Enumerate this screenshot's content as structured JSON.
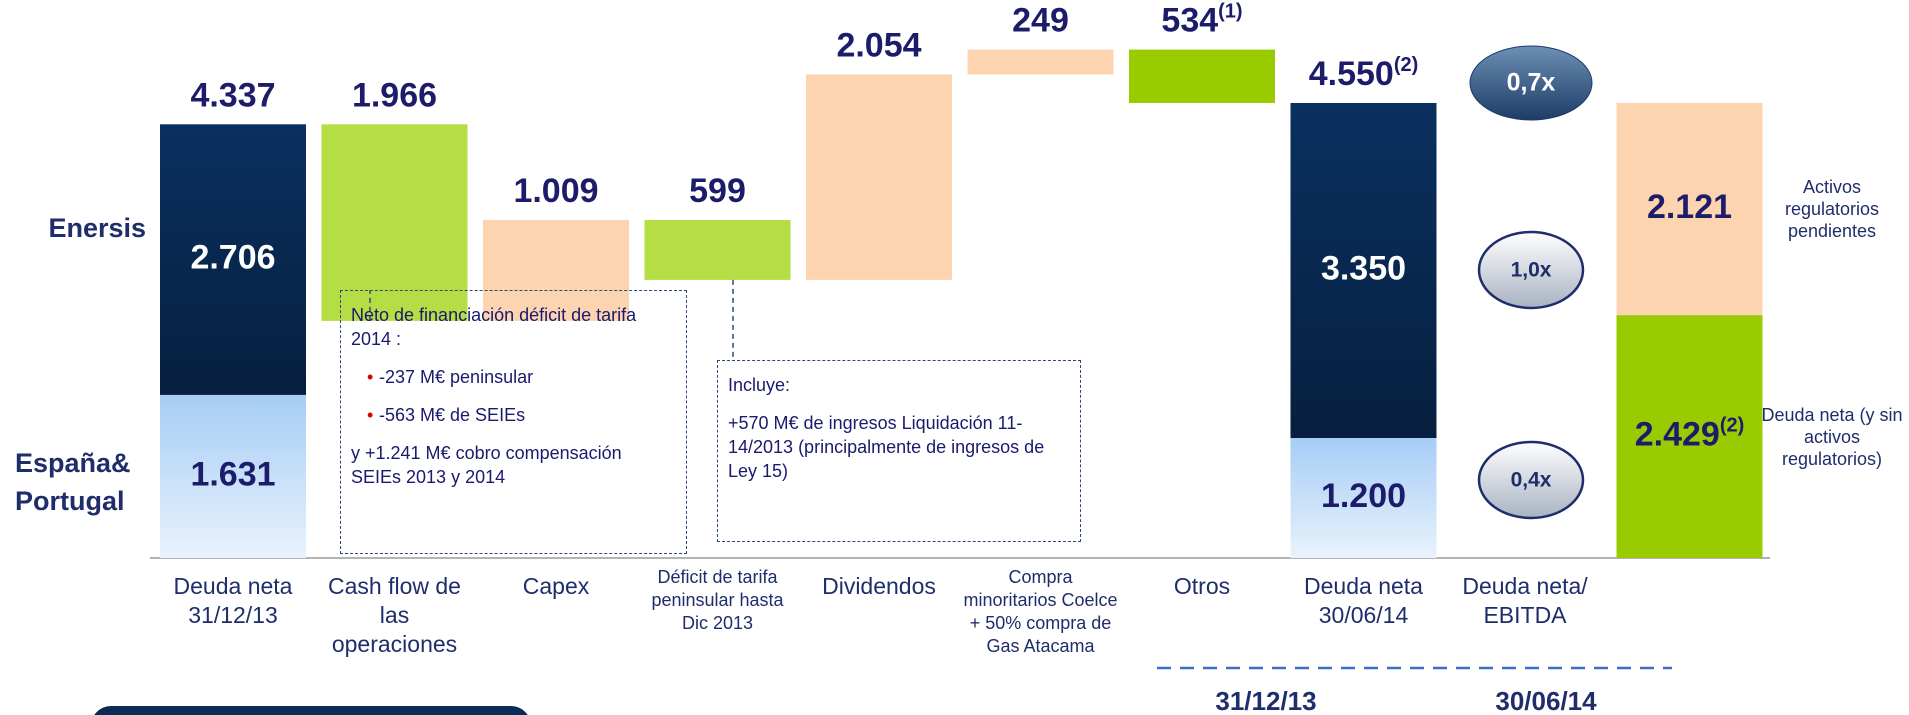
{
  "chart_data": {
    "type": "waterfall",
    "row_labels": [
      "Enersis",
      "España& Portugal"
    ],
    "categories": [
      "Deuda neta 31/12/13",
      "Cash flow de las operaciones",
      "Capex",
      "Déficit de tarifa peninsular hasta Dic 2013",
      "Dividendos",
      "Compra minoritarios Coelce + 50% compra de Gas Atacama",
      "Otros",
      "Deuda neta 30/06/14",
      "Deuda neta/ EBITDA"
    ],
    "start": {
      "total": 4337,
      "total_label": "4.337",
      "segments": [
        {
          "value": 1631,
          "label": "1.631",
          "color": "#a6cdf5"
        },
        {
          "value": 2706,
          "label": "2.706",
          "color": "#0a3060"
        }
      ]
    },
    "steps": [
      {
        "value": 1966,
        "label": "1.966",
        "decrease": true,
        "color": "#b5dd44"
      },
      {
        "value": 1009,
        "label": "1.009",
        "decrease": false,
        "color": "#fcd5b0"
      },
      {
        "value": 599,
        "label": "599",
        "decrease": true,
        "color": "#b5dd44"
      },
      {
        "value": 2054,
        "label": "2.054",
        "decrease": false,
        "color": "#fcd5b0"
      },
      {
        "value": 249,
        "label": "249",
        "decrease": false,
        "color": "#fcd5b0"
      },
      {
        "value": 534,
        "label": "534",
        "note": "(1)",
        "decrease": true,
        "color": "#99cc00"
      }
    ],
    "end": {
      "total": 4550,
      "total_label": "4.550",
      "note": "(2)",
      "segments": [
        {
          "value": 1200,
          "label": "1.200",
          "color": "#a6cdf5"
        },
        {
          "value": 3350,
          "label": "3.350",
          "color": "#0a3060"
        }
      ]
    },
    "split": {
      "segments": [
        {
          "value": 2429,
          "label": "2.429",
          "note": "(2)",
          "color": "#99cc00",
          "side_label": "Deuda neta (y sin activos regulatorios)"
        },
        {
          "value": 2121,
          "label": "2.121",
          "color": "#fcd5b0",
          "side_label": "Activos regulatorios pendientes"
        }
      ]
    },
    "ratios": [
      "0,7x",
      "1,0x",
      "0,4x"
    ],
    "period_labels": [
      "31/12/13",
      "30/06/14"
    ],
    "annotations": [
      {
        "title": "Neto de financiación déficit de tarifa 2014 :",
        "bullets": [
          "-237 M€ peninsular",
          "-563 M€ de SEIEs"
        ],
        "text": "y +1.241 M€ cobro compensación SEIEs 2013 y 2014"
      },
      {
        "title": "Incluye:",
        "text": "+570 M€ de ingresos Liquidación 11-14/2013 (principalmente de ingresos de Ley 15)"
      }
    ]
  }
}
